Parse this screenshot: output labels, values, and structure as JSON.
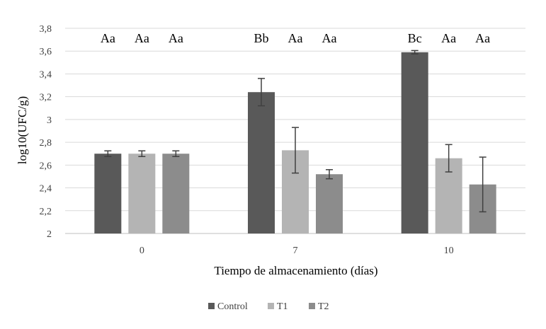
{
  "chart_data": {
    "type": "bar",
    "categories": [
      "0",
      "7",
      "10"
    ],
    "series": [
      {
        "name": "Control",
        "color": "#595959",
        "values": [
          2.7,
          3.24,
          3.59
        ],
        "errors": [
          0.025,
          0.12,
          0.015
        ],
        "labels": [
          "Aa",
          "Bb",
          "Bc"
        ]
      },
      {
        "name": "T1",
        "color": "#b4b4b4",
        "values": [
          2.7,
          2.73,
          2.66
        ],
        "errors": [
          0.025,
          0.2,
          0.12
        ],
        "labels": [
          "Aa",
          "Aa",
          "Aa"
        ]
      },
      {
        "name": "T2",
        "color": "#8c8c8c",
        "values": [
          2.7,
          2.52,
          2.43
        ],
        "errors": [
          0.025,
          0.04,
          0.24
        ],
        "labels": [
          "Aa",
          "Aa",
          "Aa"
        ]
      }
    ],
    "xlabel": "Tiempo de almacenamiento (días)",
    "ylabel": "log10(UFC/g)",
    "ylim": [
      2,
      3.8
    ],
    "yticks": [
      "2",
      "2,2",
      "2,4",
      "2,6",
      "2,8",
      "3",
      "3,2",
      "3,4",
      "3,6",
      "3,8"
    ],
    "grid": true,
    "legend_position": "bottom"
  }
}
